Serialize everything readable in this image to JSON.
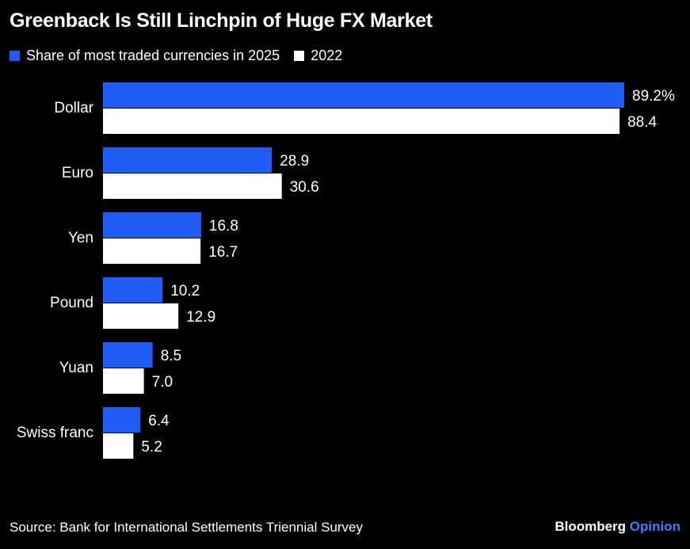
{
  "chart_data": {
    "type": "bar",
    "orientation": "horizontal",
    "title": "Greenback Is Still Linchpin of Huge FX Market",
    "categories": [
      "Dollar",
      "Euro",
      "Yen",
      "Pound",
      "Yuan",
      "Swiss franc"
    ],
    "series": [
      {
        "name": "Share of most traded currencies in 2025",
        "color": "#1f5cf6",
        "values": [
          89.2,
          28.9,
          16.8,
          10.2,
          8.5,
          6.4
        ],
        "labels": [
          "89.2%",
          "28.9",
          "16.8",
          "10.2",
          "8.5",
          "6.4"
        ]
      },
      {
        "name": "2022",
        "color": "#ffffff",
        "values": [
          88.4,
          30.6,
          16.7,
          12.9,
          7.0,
          5.2
        ],
        "labels": [
          "88.4",
          "30.6",
          "16.7",
          "12.9",
          "7.0",
          "5.2"
        ]
      }
    ],
    "xlim": [
      0,
      89.2
    ],
    "grid": false,
    "legend_position": "top-left"
  },
  "footer": {
    "source": "Source: Bank for International Settlements Triennial Survey",
    "brand_main": "Bloomberg",
    "brand_accent": "Opinion",
    "brand_accent_color": "#3d7bff"
  }
}
